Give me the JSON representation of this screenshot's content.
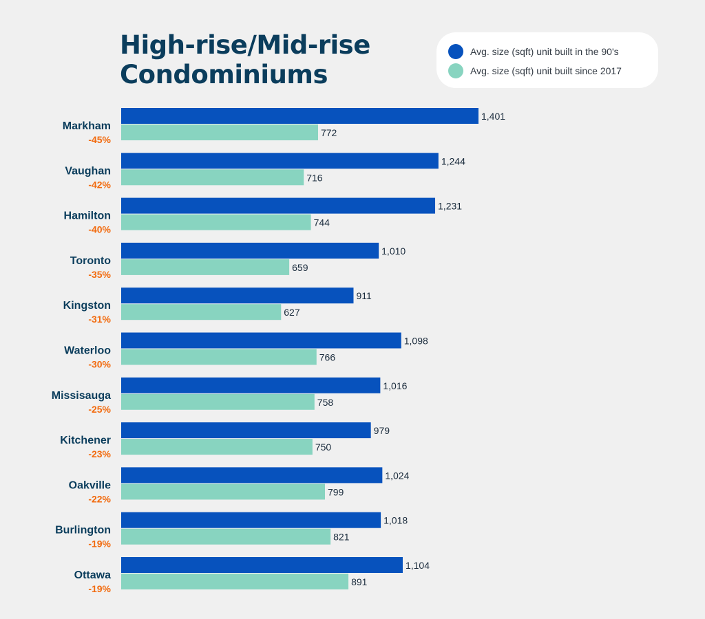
{
  "title_lines": [
    "High-rise/Mid-rise",
    "Condominiums"
  ],
  "colors": {
    "series_90s": "#0752bd",
    "series_2017": "#88d4c0",
    "city_label": "#0b3d5c",
    "pct_label": "#f26b0f",
    "value_label": "#1a2b3c",
    "background": "#f0f0f0"
  },
  "legend": {
    "placement": "top-right",
    "items": [
      {
        "label": "Avg. size (sqft) unit built in the 90's"
      },
      {
        "label": "Avg. size (sqft) unit built since 2017"
      }
    ]
  },
  "chart_data": {
    "type": "bar",
    "orientation": "horizontal",
    "title": "High-rise/Mid-rise Condominiums",
    "categories": [
      "Markham",
      "Vaughan",
      "Hamilton",
      "Toronto",
      "Kingston",
      "Waterloo",
      "Missisauga",
      "Kitchener",
      "Oakville",
      "Burlington",
      "Ottawa"
    ],
    "change_labels": [
      "-45%",
      "-42%",
      "-40%",
      "-35%",
      "-31%",
      "-30%",
      "-25%",
      "-23%",
      "-22%",
      "-19%",
      "-19%"
    ],
    "series": [
      {
        "name": "Avg. size (sqft) unit built in the 90's",
        "values": [
          1401,
          1244,
          1231,
          1010,
          911,
          1098,
          1016,
          979,
          1024,
          1018,
          1104
        ],
        "value_labels": [
          "1,401",
          "1,244",
          "1,231",
          "1,010",
          "911",
          "1,098",
          "1,016",
          "979",
          "1,024",
          "1,018",
          "1,104"
        ]
      },
      {
        "name": "Avg. size (sqft) unit built since 2017",
        "values": [
          772,
          716,
          744,
          659,
          627,
          766,
          758,
          750,
          799,
          821,
          891
        ],
        "value_labels": [
          "772",
          "716",
          "744",
          "659",
          "627",
          "766",
          "758",
          "750",
          "799",
          "821",
          "891"
        ]
      }
    ],
    "xlim": [
      0,
      1401
    ],
    "grid": false
  }
}
